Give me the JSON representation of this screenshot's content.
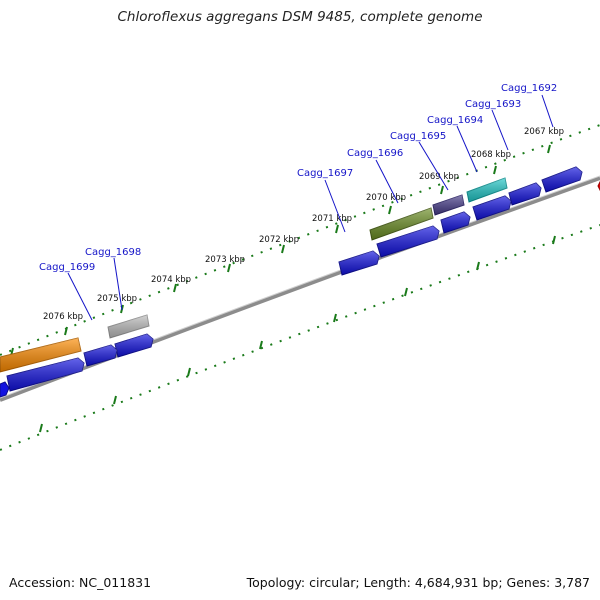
{
  "title": "Chloroflexus aggregans DSM 9485, complete genome",
  "footer": {
    "accession": "Accession: NC_011831",
    "topology": "Topology: circular; Length: 4,684,931 bp; Genes: 3,787"
  },
  "colors": {
    "backbone": "#8c8c8c",
    "ticks": "#1a7a1a",
    "gene_blue": "#1212e0",
    "gene_label": "#1515c8",
    "gene_orange": "#ff8c00",
    "gene_gray": "#bdbdbd",
    "gene_green": "#6b8e23",
    "gene_purple": "#483d8b",
    "gene_cyan": "#20c8c8",
    "gene_red": "#dd0000"
  },
  "scale_labels": [
    "2067 kbp",
    "2068 kbp",
    "2069 kbp",
    "2070 kbp",
    "2071 kbp",
    "2072 kbp",
    "2073 kbp",
    "2074 kbp",
    "2075 kbp",
    "2076 kbp"
  ],
  "gene_labels": [
    "Cagg_1692",
    "Cagg_1693",
    "Cagg_1694",
    "Cagg_1695",
    "Cagg_1696",
    "Cagg_1697",
    "Cagg_1698",
    "Cagg_1699"
  ]
}
